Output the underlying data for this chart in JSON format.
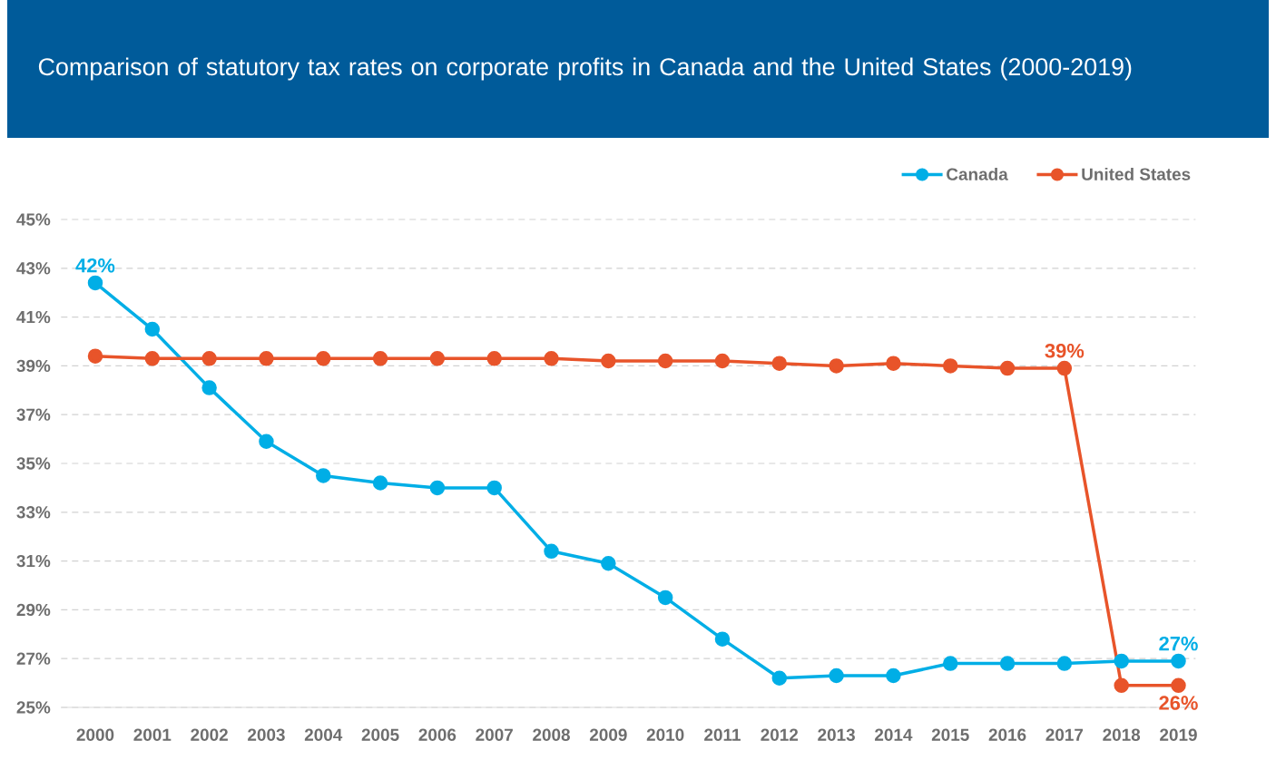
{
  "chart_data": {
    "type": "line",
    "title": "Comparison of statutory tax rates on corporate profits in Canada and the United States (2000-2019)",
    "categories": [
      "2000",
      "2001",
      "2002",
      "2003",
      "2004",
      "2005",
      "2006",
      "2007",
      "2008",
      "2009",
      "2010",
      "2011",
      "2012",
      "2013",
      "2014",
      "2015",
      "2016",
      "2017",
      "2018",
      "2019"
    ],
    "series": [
      {
        "name": "Canada",
        "color": "#00aee6",
        "values": [
          42.4,
          40.5,
          38.1,
          35.9,
          34.5,
          34.2,
          34.0,
          34.0,
          31.4,
          30.9,
          29.5,
          27.8,
          26.2,
          26.3,
          26.3,
          26.8,
          26.8,
          26.8,
          26.9,
          26.9
        ],
        "value_labels": [
          "42%",
          null,
          null,
          null,
          null,
          null,
          null,
          null,
          null,
          null,
          null,
          null,
          null,
          null,
          null,
          null,
          null,
          null,
          null,
          "27%"
        ]
      },
      {
        "name": "United States",
        "color": "#e8542a",
        "values": [
          39.4,
          39.3,
          39.3,
          39.3,
          39.3,
          39.3,
          39.3,
          39.3,
          39.3,
          39.2,
          39.2,
          39.2,
          39.1,
          39.0,
          39.1,
          39.0,
          38.9,
          38.9,
          25.9,
          25.9
        ],
        "value_labels": [
          null,
          null,
          null,
          null,
          null,
          null,
          null,
          null,
          null,
          null,
          null,
          null,
          null,
          null,
          null,
          null,
          null,
          "39%",
          null,
          "26%"
        ]
      }
    ],
    "ylim": [
      25,
      45
    ],
    "yticks": [
      {
        "value": 25,
        "label": "25%"
      },
      {
        "value": 27,
        "label": "27%"
      },
      {
        "value": 29,
        "label": "29%"
      },
      {
        "value": 31,
        "label": "31%"
      },
      {
        "value": 33,
        "label": "33%"
      },
      {
        "value": 35,
        "label": "35%"
      },
      {
        "value": 37,
        "label": "37%"
      },
      {
        "value": 39,
        "label": "39%"
      },
      {
        "value": 41,
        "label": "41%"
      },
      {
        "value": 43,
        "label": "43%"
      },
      {
        "value": 45,
        "label": "45%"
      }
    ],
    "grid": "y",
    "legend": "top right",
    "marker": "circle",
    "line_style": "solid"
  }
}
